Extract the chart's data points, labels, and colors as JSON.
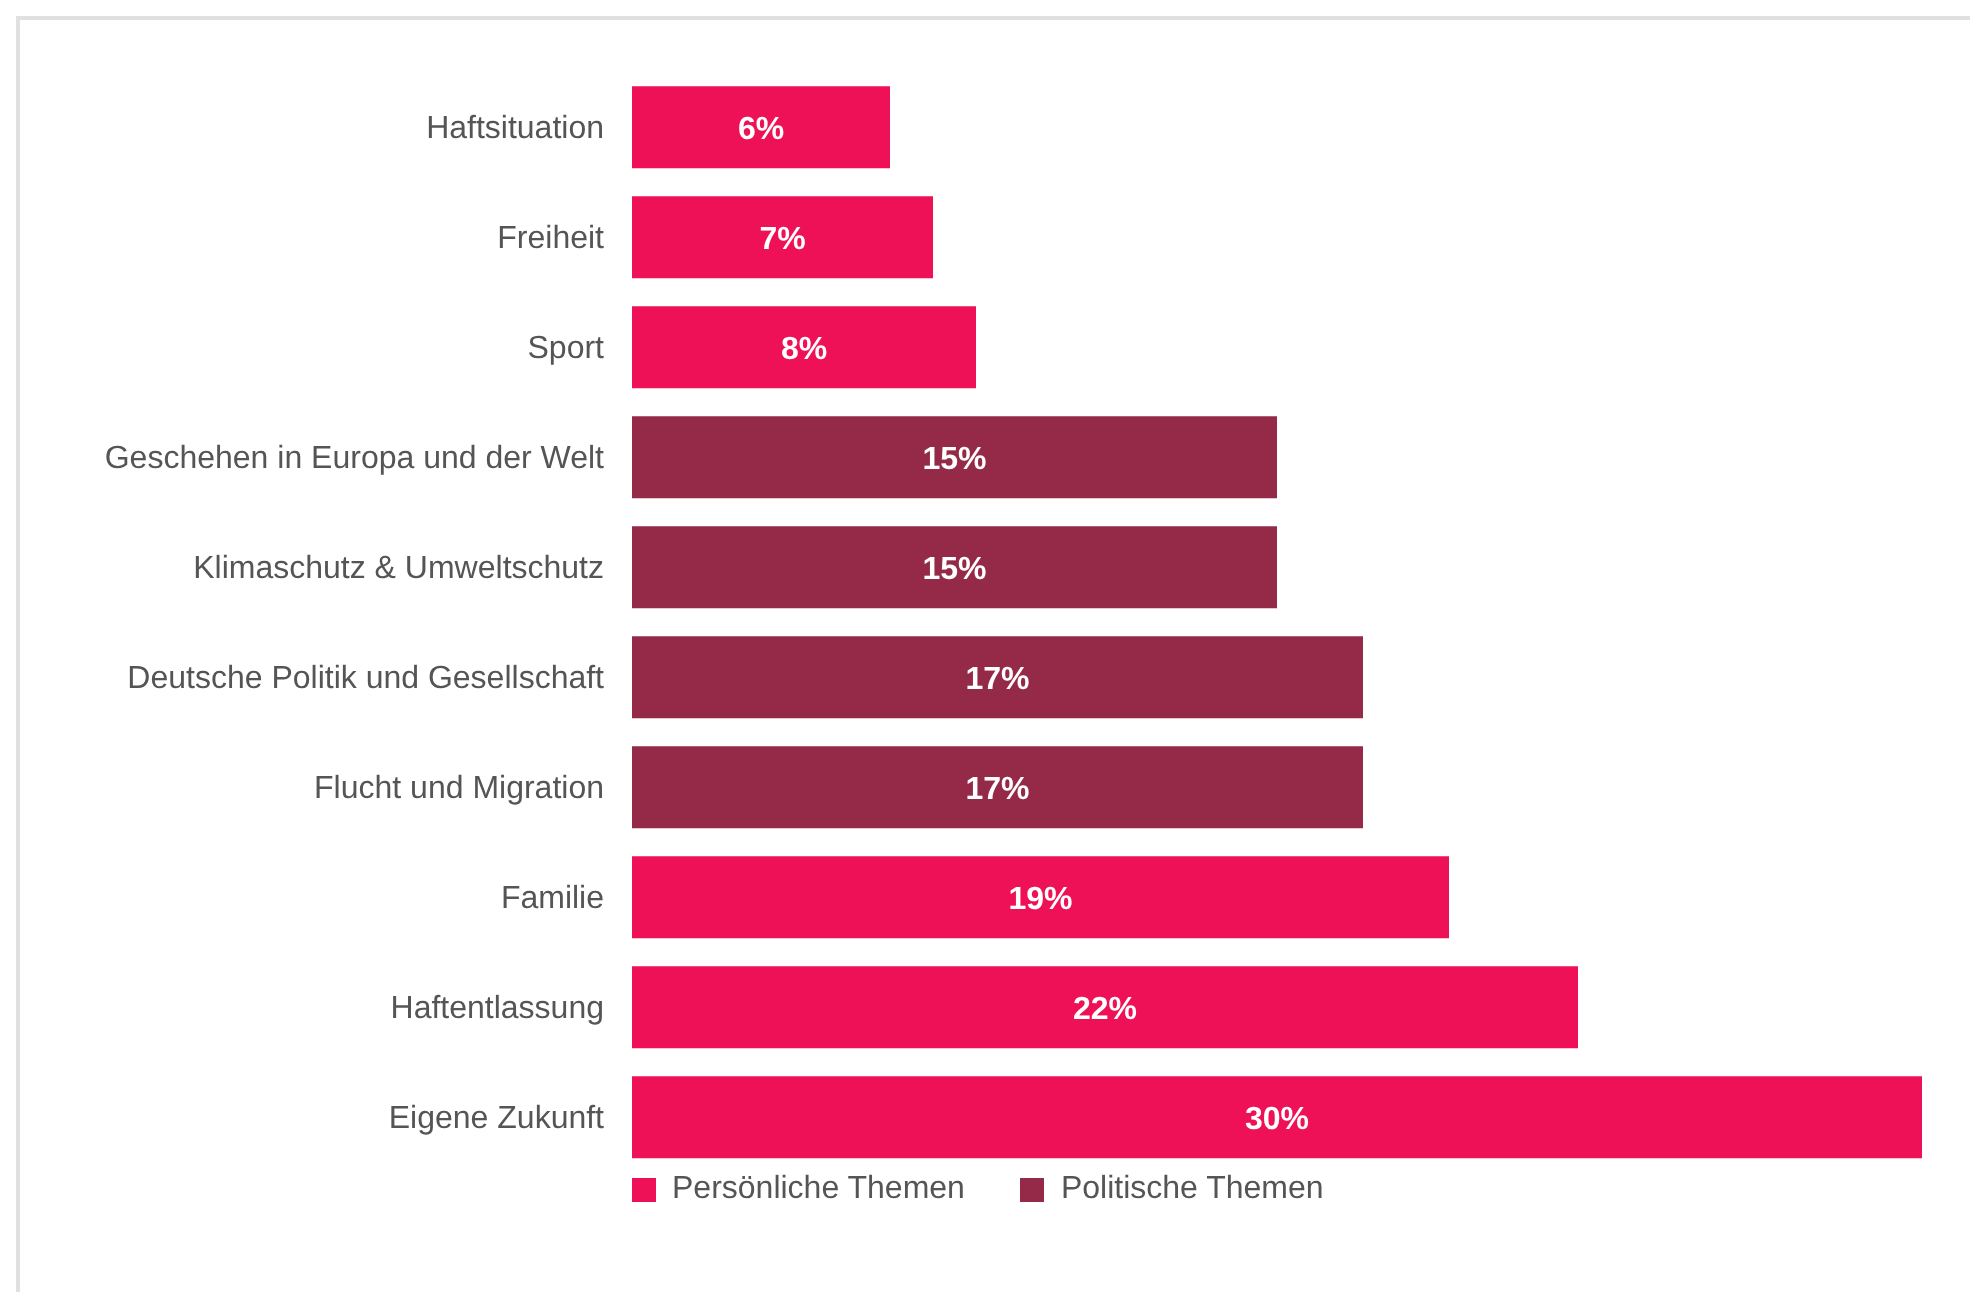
{
  "chart_data": {
    "type": "bar",
    "orientation": "horizontal",
    "stacked": true,
    "legend": "bottom left",
    "grid": false,
    "categories": [
      "Haftsituation",
      "Freiheit",
      "Sport",
      "Geschehen in Europa und der Welt",
      "Klimaschutz & Umweltschutz",
      "Deutsche Politik und Gesellschaft",
      "Flucht und Migration",
      "Familie",
      "Haftentlassung",
      "Eigene Zukunft"
    ],
    "series": [
      {
        "name": "Persönliche Themen",
        "color": "#ee1157",
        "values": [
          6,
          7,
          8,
          null,
          null,
          null,
          null,
          19,
          22,
          30
        ],
        "value_labels": [
          "6%",
          "7%",
          "8%",
          null,
          null,
          null,
          null,
          "19%",
          "22%",
          "30%"
        ]
      },
      {
        "name": "Politische Themen",
        "color": "#952a48",
        "values": [
          null,
          null,
          null,
          15,
          15,
          17,
          17,
          null,
          null,
          null
        ],
        "value_labels": [
          null,
          null,
          null,
          "15%",
          "15%",
          "17%",
          "17%",
          null,
          null,
          null
        ]
      }
    ]
  }
}
